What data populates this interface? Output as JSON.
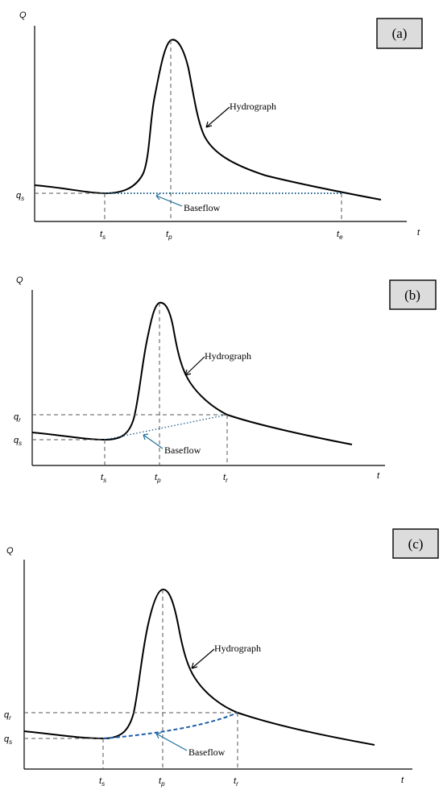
{
  "panels": [
    {
      "id": "a",
      "label": "(a)",
      "y_axis": "Q",
      "x_axis": "t",
      "q_labels": [
        {
          "base": "q",
          "sub": "s"
        }
      ],
      "t_labels": [
        {
          "base": "t",
          "sub": "s"
        },
        {
          "base": "t",
          "sub": "p"
        },
        {
          "base": "t",
          "sub": "e"
        }
      ],
      "hydrograph_label": "Hydrograph",
      "baseflow_label": "Baseflow"
    },
    {
      "id": "b",
      "label": "(b)",
      "y_axis": "Q",
      "x_axis": "t",
      "q_labels": [
        {
          "base": "q",
          "sub": "r"
        },
        {
          "base": "q",
          "sub": "s"
        }
      ],
      "t_labels": [
        {
          "base": "t",
          "sub": "s"
        },
        {
          "base": "t",
          "sub": "p"
        },
        {
          "base": "t",
          "sub": "r"
        }
      ],
      "hydrograph_label": "Hydrograph",
      "baseflow_label": "Baseflow"
    },
    {
      "id": "c",
      "label": "(c)",
      "y_axis": "Q",
      "x_axis": "t",
      "q_labels": [
        {
          "base": "q",
          "sub": "r"
        },
        {
          "base": "q",
          "sub": "s"
        }
      ],
      "t_labels": [
        {
          "base": "t",
          "sub": "s"
        },
        {
          "base": "t",
          "sub": "p"
        },
        {
          "base": "t",
          "sub": "r"
        }
      ],
      "hydrograph_label": "Hydrograph",
      "baseflow_label": "Baseflow"
    }
  ]
}
